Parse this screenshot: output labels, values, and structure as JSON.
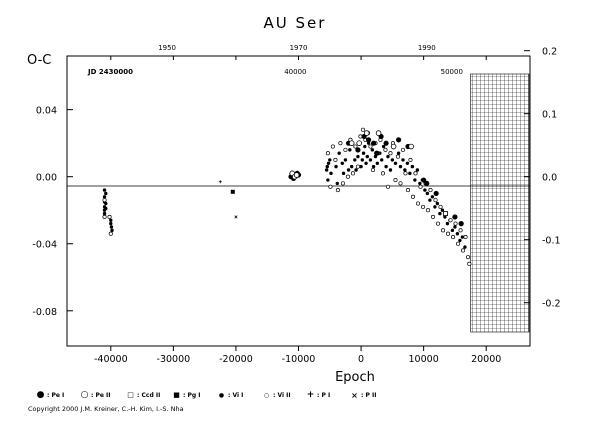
{
  "chart_data": {
    "type": "scatter",
    "title": "AU Ser",
    "ylabel": "O-C",
    "xlabel": "Epoch",
    "x_axis_bottom": {
      "ticks": [
        -40000,
        -30000,
        -20000,
        -10000,
        0,
        10000,
        20000
      ],
      "range": [
        -47000,
        27000
      ]
    },
    "y_axis_left": {
      "ticks": [
        "0.04",
        "0.00",
        "-0.04",
        "-0.08"
      ],
      "range": [
        -0.101,
        0.072
      ]
    },
    "y_axis_right": {
      "ticks": [
        "0.2",
        "0.1",
        "0.0",
        "-0.1",
        "-0.2"
      ]
    },
    "x_axis_top_years": [
      "1950",
      "1970",
      "1990"
    ],
    "x_axis_top_jd": [
      "JD 2430000",
      "40000",
      "50000"
    ],
    "grid": false,
    "legend_position": "bottom",
    "legend": [
      {
        "symbol": "filled-circle",
        "label": ": Pe I"
      },
      {
        "symbol": "open-circle",
        "label": ": Pe II"
      },
      {
        "symbol": "open-square",
        "label": ": Ccd II"
      },
      {
        "symbol": "filled-square",
        "label": ": Pg I"
      },
      {
        "symbol": "small-filled-circle",
        "label": ": Vi I"
      },
      {
        "symbol": "small-open-circle",
        "label": ": Vi II"
      },
      {
        "symbol": "plus",
        "label": ": P I"
      },
      {
        "symbol": "cross",
        "label": ": P II"
      }
    ],
    "shaded_region": {
      "x_from": 17500,
      "x_to": 27000,
      "pattern": "crosshatch"
    },
    "series": [
      {
        "marker": "small-filled-circle",
        "points": [
          [
            -41000,
            -0.008
          ],
          [
            -41000,
            -0.012
          ],
          [
            -41000,
            -0.015
          ],
          [
            -41000,
            -0.018
          ],
          [
            -41000,
            -0.02
          ],
          [
            -41000,
            -0.022
          ],
          [
            -40800,
            -0.01
          ],
          [
            -40800,
            -0.016
          ],
          [
            -40800,
            -0.019
          ],
          [
            -40000,
            -0.026
          ],
          [
            -40000,
            -0.028
          ],
          [
            -39900,
            -0.03
          ],
          [
            -39800,
            -0.032
          ],
          [
            -5500,
            0.004
          ],
          [
            -5400,
            0.006
          ],
          [
            -5300,
            -0.002
          ],
          [
            -5200,
            0.008
          ],
          [
            -5000,
            0.01
          ],
          [
            -4800,
            0.002
          ],
          [
            -4000,
            0.006
          ],
          [
            -3800,
            -0.004
          ],
          [
            -3500,
            0.014
          ],
          [
            -3000,
            0.008
          ],
          [
            -2800,
            0.002
          ],
          [
            -2500,
            0.01
          ],
          [
            -2000,
            0.004
          ],
          [
            -1800,
            0.016
          ],
          [
            -1500,
            0.006
          ],
          [
            -1000,
            0.01
          ],
          [
            -800,
            0.004
          ],
          [
            -500,
            0.012
          ],
          [
            0,
            0.006
          ],
          [
            200,
            0.01
          ],
          [
            400,
            0.014
          ],
          [
            600,
            0.018
          ],
          [
            800,
            0.008
          ],
          [
            1000,
            0.012
          ],
          [
            1200,
            0.02
          ],
          [
            1500,
            0.01
          ],
          [
            1800,
            0.016
          ],
          [
            2000,
            0.006
          ],
          [
            2300,
            0.012
          ],
          [
            2600,
            0.008
          ],
          [
            3000,
            0.014
          ],
          [
            3300,
            0.01
          ],
          [
            3600,
            0.018
          ],
          [
            4000,
            0.006
          ],
          [
            4300,
            0.012
          ],
          [
            4700,
            0.004
          ],
          [
            5000,
            0.01
          ],
          [
            5500,
            0.008
          ],
          [
            6000,
            0.014
          ],
          [
            6300,
            0.006
          ],
          [
            6700,
            0.01
          ],
          [
            7000,
            0.004
          ],
          [
            7400,
            0.008
          ],
          [
            7800,
            0.002
          ],
          [
            8200,
            0.006
          ],
          [
            8600,
            -0.002
          ],
          [
            9000,
            0.004
          ],
          [
            9400,
            -0.004
          ],
          [
            9800,
            -0.002
          ],
          [
            10200,
            -0.008
          ],
          [
            10600,
            -0.01
          ],
          [
            11000,
            -0.014
          ],
          [
            11400,
            -0.012
          ],
          [
            11800,
            -0.018
          ],
          [
            12200,
            -0.016
          ],
          [
            12600,
            -0.022
          ],
          [
            13000,
            -0.02
          ],
          [
            13400,
            -0.024
          ],
          [
            13800,
            -0.028
          ],
          [
            14200,
            -0.026
          ],
          [
            14600,
            -0.032
          ],
          [
            15000,
            -0.03
          ],
          [
            15400,
            -0.034
          ],
          [
            15800,
            -0.038
          ],
          [
            16200,
            -0.036
          ],
          [
            16600,
            -0.042
          ]
        ]
      },
      {
        "marker": "small-open-circle",
        "points": [
          [
            -41000,
            -0.014
          ],
          [
            -41000,
            -0.024
          ],
          [
            -40000,
            -0.034
          ],
          [
            -40200,
            -0.024
          ],
          [
            -5300,
            0.014
          ],
          [
            -4900,
            -0.006
          ],
          [
            -4500,
            0.018
          ],
          [
            -4100,
            0.01
          ],
          [
            -3700,
            -0.008
          ],
          [
            -3300,
            0.02
          ],
          [
            -2900,
            -0.004
          ],
          [
            -2500,
            0.016
          ],
          [
            -2100,
            0.0
          ],
          [
            -1700,
            0.022
          ],
          [
            -1300,
            0.002
          ],
          [
            -900,
            0.018
          ],
          [
            -500,
            0.006
          ],
          [
            -100,
            0.024
          ],
          [
            300,
            0.028
          ],
          [
            700,
            0.022
          ],
          [
            1100,
            0.026
          ],
          [
            1500,
            0.018
          ],
          [
            1900,
            0.004
          ],
          [
            2300,
            0.02
          ],
          [
            2700,
            0.014
          ],
          [
            3100,
            0.022
          ],
          [
            3500,
            0.002
          ],
          [
            3900,
            0.016
          ],
          [
            4300,
            -0.006
          ],
          [
            4700,
            0.014
          ],
          [
            5100,
            0.02
          ],
          [
            5500,
            -0.002
          ],
          [
            5900,
            0.012
          ],
          [
            6300,
            -0.004
          ],
          [
            6700,
            0.016
          ],
          [
            7100,
            0.002
          ],
          [
            7500,
            -0.008
          ],
          [
            7900,
            0.01
          ],
          [
            8300,
            -0.012
          ],
          [
            8700,
            0.002
          ],
          [
            9100,
            -0.016
          ],
          [
            9500,
            -0.006
          ],
          [
            9900,
            -0.018
          ],
          [
            10300,
            -0.004
          ],
          [
            10700,
            -0.02
          ],
          [
            11100,
            -0.008
          ],
          [
            11500,
            -0.024
          ],
          [
            11900,
            -0.014
          ],
          [
            12300,
            -0.028
          ],
          [
            12700,
            -0.018
          ],
          [
            13100,
            -0.032
          ],
          [
            13500,
            -0.022
          ],
          [
            13900,
            -0.034
          ],
          [
            14300,
            -0.026
          ],
          [
            14700,
            -0.036
          ],
          [
            15100,
            -0.028
          ],
          [
            15500,
            -0.04
          ],
          [
            15900,
            -0.032
          ],
          [
            16300,
            -0.044
          ],
          [
            16700,
            -0.036
          ],
          [
            17100,
            -0.048
          ],
          [
            17300,
            -0.052
          ]
        ]
      },
      {
        "marker": "filled-circle",
        "points": [
          [
            -11200,
            0.0
          ],
          [
            -11000,
            0.001
          ],
          [
            -10800,
            -0.001
          ],
          [
            -10500,
            0.001
          ],
          [
            -10200,
            0.002
          ],
          [
            -10000,
            0.001
          ],
          [
            -2000,
            0.02
          ],
          [
            -500,
            0.016
          ],
          [
            500,
            0.024
          ],
          [
            1200,
            0.022
          ],
          [
            2000,
            0.02
          ],
          [
            2500,
            0.014
          ],
          [
            3200,
            0.024
          ],
          [
            4000,
            0.02
          ],
          [
            6000,
            0.022
          ],
          [
            7500,
            0.018
          ],
          [
            10000,
            -0.002
          ],
          [
            10500,
            -0.004
          ],
          [
            12000,
            -0.01
          ],
          [
            15000,
            -0.024
          ],
          [
            16000,
            -0.028
          ]
        ]
      },
      {
        "marker": "open-circle",
        "points": [
          [
            -11000,
            0.002
          ],
          [
            -10600,
            0.0
          ],
          [
            -10300,
            0.001
          ],
          [
            -1500,
            0.02
          ],
          [
            -300,
            0.02
          ],
          [
            900,
            0.026
          ],
          [
            2800,
            0.026
          ],
          [
            5200,
            0.018
          ],
          [
            8000,
            0.018
          ]
        ]
      },
      {
        "marker": "filled-square",
        "points": [
          [
            -20500,
            -0.009
          ]
        ]
      },
      {
        "marker": "open-square",
        "points": [
          [
            13500,
            -0.022
          ]
        ]
      },
      {
        "marker": "plus",
        "points": [
          [
            -22500,
            -0.003
          ]
        ]
      },
      {
        "marker": "cross",
        "points": [
          [
            -20000,
            -0.024
          ]
        ]
      }
    ]
  },
  "copyright": "Copyright 2000 J.M. Kreiner, C.-H. Kim, I.-S. Nha"
}
